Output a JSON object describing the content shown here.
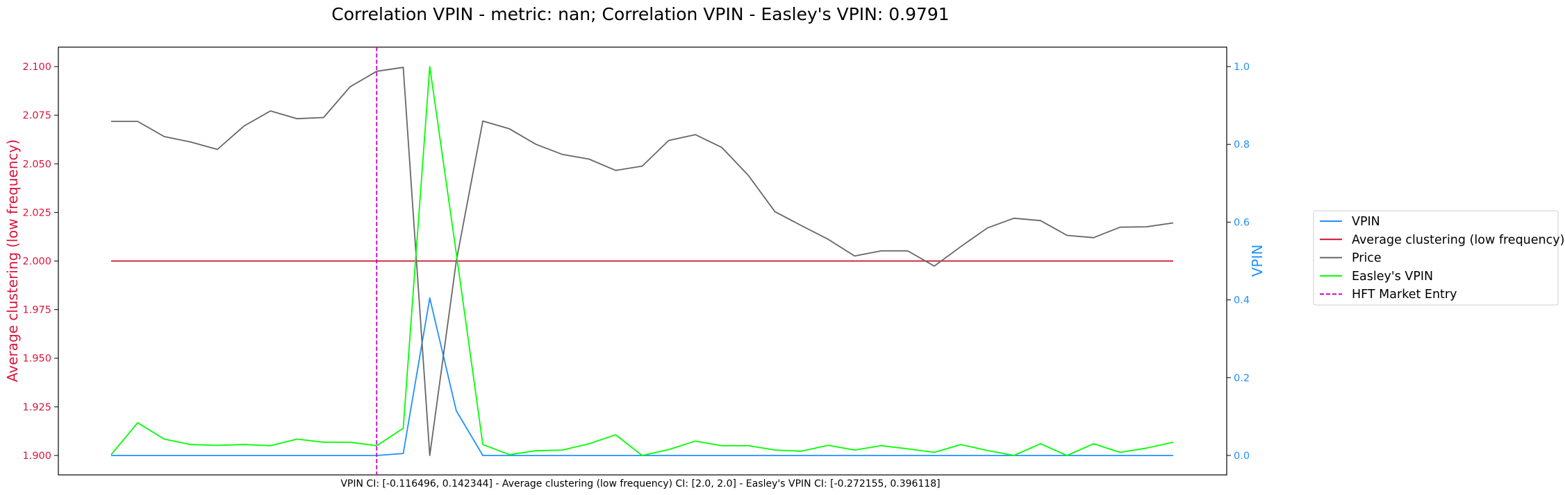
{
  "chart_data": {
    "type": "line",
    "title": "Correlation VPIN - metric: nan; Correlation VPIN - Easley's VPIN: 0.9791",
    "footer": "VPIN CI: [-0.116496, 0.142344] - Average clustering (low frequency) CI: [2.0, 2.0] - Easley's VPIN CI: [-0.272155, 0.396118]",
    "xlabel": "",
    "y_left": {
      "label": "Average clustering (low frequency)",
      "color": "#dc143c",
      "ylim": [
        1.89,
        2.11
      ],
      "ticks": [
        "1.900",
        "1.925",
        "1.950",
        "1.975",
        "2.000",
        "2.025",
        "2.050",
        "2.075",
        "2.100"
      ]
    },
    "y_right": {
      "label": "VPIN",
      "color": "#1e90ff",
      "ylim": [
        -0.05,
        1.05
      ],
      "ticks": [
        "0.0",
        "0.2",
        "0.4",
        "0.6",
        "0.8",
        "1.0"
      ]
    },
    "x": [
      0,
      1,
      2,
      3,
      4,
      5,
      6,
      7,
      8,
      9,
      10,
      11,
      12,
      13,
      14,
      15,
      16,
      17,
      18,
      19,
      20,
      21,
      22,
      23,
      24,
      25,
      26,
      27,
      28,
      29,
      30,
      31,
      32,
      33,
      34,
      35,
      36,
      37,
      38,
      39,
      40
    ],
    "series": [
      {
        "name": "VPIN",
        "axis": "right",
        "color": "#1e90ff",
        "values": [
          0,
          0,
          0,
          0,
          0,
          0,
          0,
          0,
          0,
          0,
          0,
          0.005,
          0.405,
          0.115,
          0,
          0,
          0,
          0,
          0,
          0,
          0,
          0,
          0,
          0,
          0,
          0,
          0,
          0,
          0,
          0,
          0,
          0,
          0,
          0,
          0,
          0,
          0,
          0,
          0,
          0,
          0
        ]
      },
      {
        "name": "Average clustering (low frequency)",
        "axis": "left",
        "color": "#c8102e",
        "values": [
          2.0,
          2.0,
          2.0,
          2.0,
          2.0,
          2.0,
          2.0,
          2.0,
          2.0,
          2.0,
          2.0,
          2.0,
          2.0,
          2.0,
          2.0,
          2.0,
          2.0,
          2.0,
          2.0,
          2.0,
          2.0,
          2.0,
          2.0,
          2.0,
          2.0,
          2.0,
          2.0,
          2.0,
          2.0,
          2.0,
          2.0,
          2.0,
          2.0,
          2.0,
          2.0,
          2.0,
          2.0,
          2.0,
          2.0,
          2.0,
          2.0
        ]
      },
      {
        "name": "Price",
        "axis": "right",
        "color": "#666666",
        "values": [
          0.859,
          0.859,
          0.82,
          0.806,
          0.787,
          0.847,
          0.886,
          0.866,
          0.869,
          0.948,
          0.988,
          0.998,
          0,
          0.5,
          0.86,
          0.84,
          0.8,
          0.774,
          0.762,
          0.733,
          0.744,
          0.81,
          0.825,
          0.792,
          0.72,
          0.627,
          0.591,
          0.556,
          0.513,
          0.526,
          0.526,
          0.487,
          0.537,
          0.585,
          0.61,
          0.604,
          0.566,
          0.56,
          0.587,
          0.588,
          0.598
        ]
      },
      {
        "name": "Easley's VPIN",
        "axis": "right",
        "color": "#00ff00",
        "values": [
          0.002,
          0.084,
          0.042,
          0.028,
          0.026,
          0.028,
          0.025,
          0.042,
          0.034,
          0.034,
          0.025,
          0.07,
          1.0,
          0.52,
          0.028,
          0.002,
          0.012,
          0.014,
          0.03,
          0.053,
          0,
          0.015,
          0.037,
          0.025,
          0.025,
          0.014,
          0.011,
          0.026,
          0.014,
          0.025,
          0.017,
          0.008,
          0.028,
          0.013,
          0,
          0.03,
          0,
          0.03,
          0.008,
          0.019,
          0.034
        ]
      }
    ],
    "annotations": [
      {
        "name": "HFT Market Entry",
        "type": "vline",
        "x": 10,
        "color": "#cc00cc",
        "style": "dashed"
      }
    ],
    "legend": {
      "placement": "right",
      "entries": [
        "VPIN",
        "Average clustering (low frequency)",
        "Price",
        "Easley's VPIN",
        "HFT Market Entry"
      ]
    },
    "grid": false
  }
}
